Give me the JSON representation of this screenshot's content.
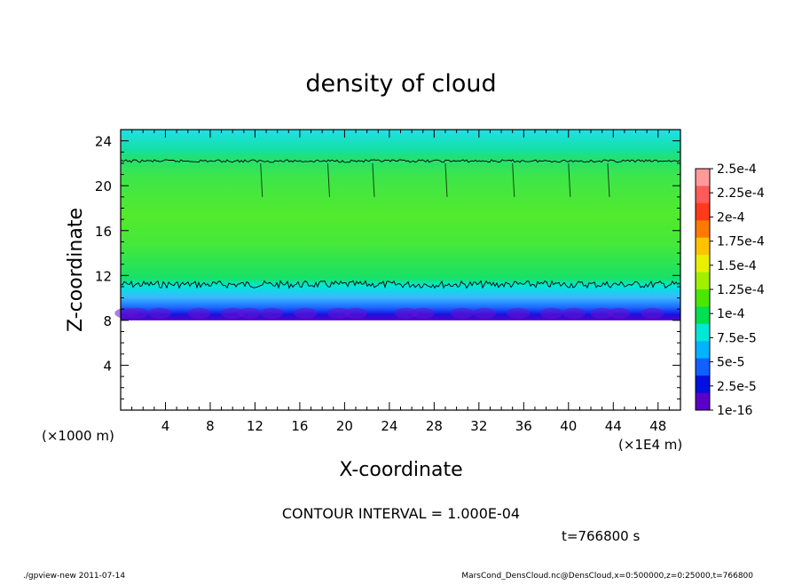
{
  "chart_data": {
    "type": "heatmap",
    "title": "density of cloud",
    "xlabel": "X-coordinate",
    "ylabel": "Z-coordinate",
    "x_unit_label": "(×1E4 m)",
    "y_unit_label": "(×1000 m)",
    "xlim": [
      0,
      50
    ],
    "ylim": [
      0,
      25
    ],
    "x_ticks": [
      "4",
      "8",
      "12",
      "16",
      "20",
      "24",
      "28",
      "32",
      "36",
      "40",
      "44",
      "48"
    ],
    "x_tick_values": [
      4,
      8,
      12,
      16,
      20,
      24,
      28,
      32,
      36,
      40,
      44,
      48
    ],
    "y_ticks": [
      "4",
      "8",
      "12",
      "16",
      "20",
      "24"
    ],
    "y_tick_values": [
      4,
      8,
      12,
      16,
      20,
      24
    ],
    "colorbar": {
      "labels": [
        "2.5e-4",
        "2.25e-4",
        "2e-4",
        "1.75e-4",
        "1.5e-4",
        "1.25e-4",
        "1e-4",
        "7.5e-5",
        "5e-5",
        "2.5e-5",
        "1e-16"
      ],
      "colors": [
        "#ff9a9a",
        "#ff5a5a",
        "#ff3a1a",
        "#ff7a00",
        "#ffc400",
        "#e8f000",
        "#a0f000",
        "#4ae800",
        "#00e050",
        "#00e8d8",
        "#00b4ff",
        "#1060ff",
        "#0010e0",
        "#5a00c8"
      ]
    },
    "cloud_layer": {
      "bottom_z": 8,
      "contour_levels_z": [
        11.2,
        22.2
      ],
      "top_z": 25
    }
  },
  "contour_interval_text": "CONTOUR INTERVAL = 1.000E-04",
  "time_text": "t=766800 s",
  "footer_left": "./gpview-new   2011-07-14",
  "footer_right": "MarsCond_DensCloud.nc@DensCloud,x=0:500000,z=0:25000,t=766800"
}
